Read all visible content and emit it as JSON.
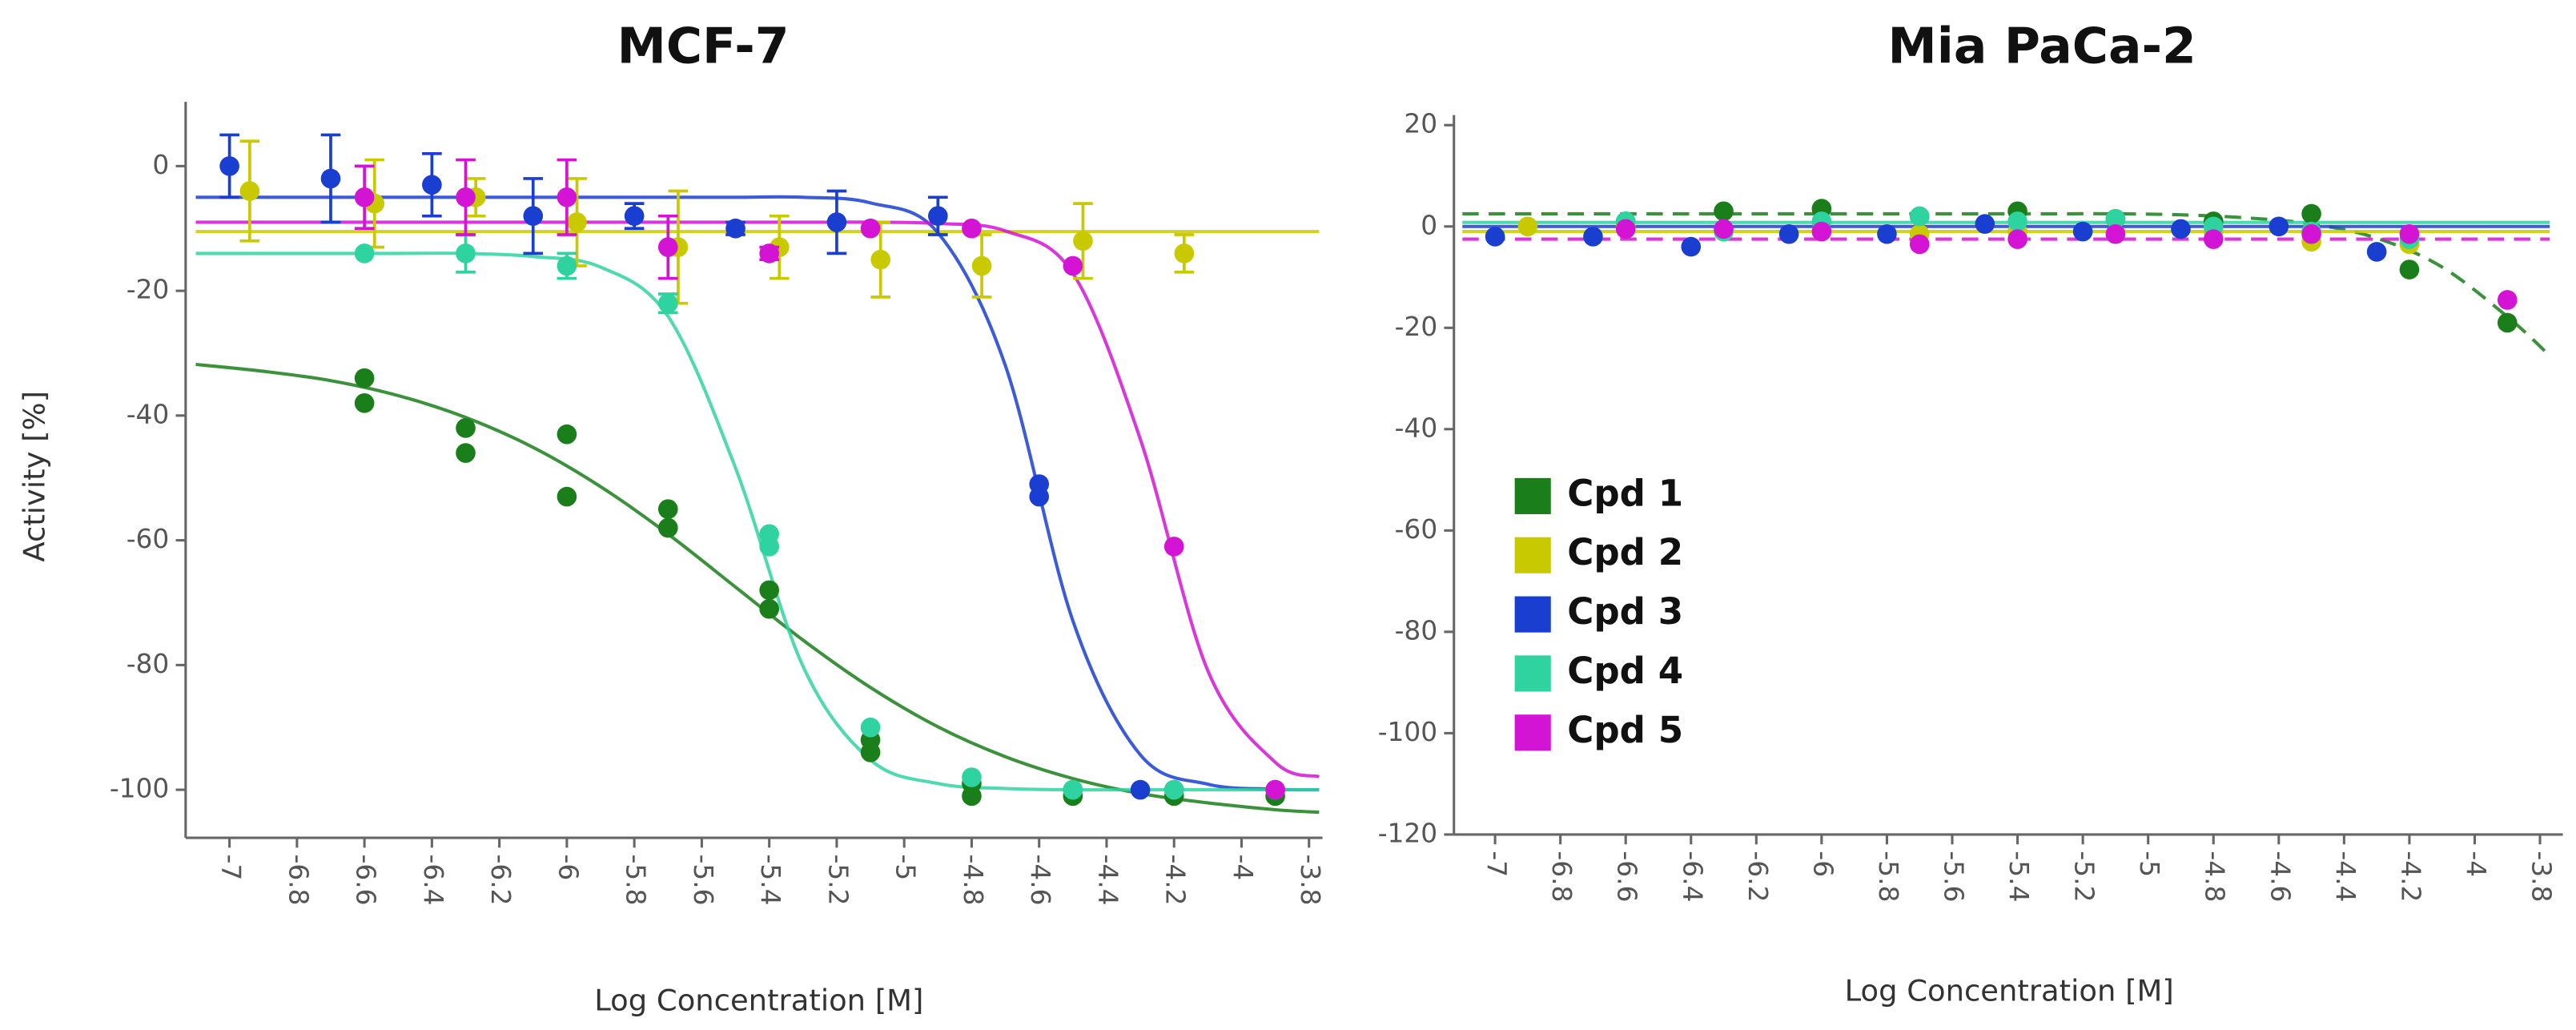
{
  "chart_data": [
    {
      "type": "scatter",
      "title": "MCF-7",
      "y_label": "Activity [%]",
      "x_label": "Log Concentration [M]",
      "xlim": [
        -7.13,
        -3.76
      ],
      "xticks": [
        -7,
        -6.8,
        -6.6,
        -6.4,
        -6.2,
        -6,
        -5.8,
        -5.6,
        -5.4,
        -5.2,
        -5,
        -4.8,
        -4.6,
        -4.4,
        -4.2,
        -4,
        -3.8
      ],
      "ylim": [
        -107.7,
        10.3
      ],
      "yticks": [
        -100,
        -80,
        -60,
        -40,
        -20,
        0
      ],
      "fit_x": [
        -7.1,
        -6.9,
        -6.7,
        -6.5,
        -6.3,
        -6.1,
        -5.9,
        -5.7,
        -5.5,
        -5.3,
        -5.1,
        -4.9,
        -4.7,
        -4.5,
        -4.3,
        -4.1,
        -3.9,
        -3.77
      ],
      "series": [
        {
          "color": "#1a7f1a",
          "x": [
            -6.6,
            -6.6,
            -6.3,
            -6.3,
            -6,
            -6,
            -5.7,
            -5.7,
            -5.4,
            -5.4,
            -5.1,
            -5.1,
            -4.8,
            -4.8,
            -4.5,
            -4.5,
            -4.2,
            -4.2,
            -3.9,
            -3.9
          ],
          "values": [
            -34,
            -38,
            -42,
            -46,
            -43,
            -53,
            -55,
            -58,
            -68,
            -71,
            -92,
            -94,
            -99,
            -101,
            -100,
            -101,
            -101,
            -100,
            -100,
            -101
          ],
          "fit": [
            -31.8,
            -32.9,
            -34.4,
            -36.8,
            -40.3,
            -45.1,
            -51.4,
            -59.0,
            -67.5,
            -76.0,
            -83.6,
            -89.9,
            -94.7,
            -98.2,
            -100.6,
            -102.1,
            -103.2,
            -103.6
          ]
        },
        {
          "color": "#c9c900",
          "x": [
            -6.94,
            -6.57,
            -6.27,
            -5.97,
            -5.67,
            -5.37,
            -5.07,
            -4.77,
            -4.47,
            -4.17
          ],
          "values": [
            -4,
            -6,
            -5,
            -9,
            -13,
            -13,
            -15,
            -16,
            -12,
            -14
          ],
          "errors": [
            8,
            7,
            3,
            7,
            9,
            5,
            6,
            5,
            6,
            3
          ],
          "fit": [
            -10.5,
            -10.5,
            -10.5,
            -10.5,
            -10.5,
            -10.5,
            -10.5,
            -10.5,
            -10.5,
            -10.5,
            -10.5,
            -10.5,
            -10.5,
            -10.5,
            -10.5,
            -10.5,
            -10.5,
            -10.5
          ]
        },
        {
          "color": "#1a3fd0",
          "x": [
            -7,
            -6.7,
            -6.4,
            -6.1,
            -5.8,
            -5.5,
            -5.2,
            -4.9,
            -4.6,
            -4.6,
            -4.3
          ],
          "values": [
            0,
            -2,
            -3,
            -8,
            -8,
            -10,
            -9,
            -8,
            -51,
            -53,
            -100
          ],
          "errors": [
            5,
            7,
            5,
            6,
            2,
            1,
            5,
            3,
            null,
            null,
            null
          ],
          "fit": [
            -5,
            -5,
            -5,
            -5,
            -5,
            -5,
            -5,
            -5,
            -5,
            -5,
            -5.9,
            -10.7,
            -32,
            -72.9,
            -94.4,
            -99.1,
            -99.9,
            -100
          ]
        },
        {
          "color": "#2fd3a0",
          "x": [
            -6.6,
            -6.3,
            -6,
            -5.7,
            -5.4,
            -5.4,
            -5.1,
            -4.8,
            -4.5,
            -4.2,
            -3.9
          ],
          "values": [
            -14,
            -14,
            -16,
            -22,
            -59,
            -61,
            -90,
            -98,
            -100,
            -100,
            -100
          ],
          "errors": [
            null,
            3,
            2,
            1.5,
            null,
            null,
            null,
            null,
            null,
            null,
            null
          ],
          "fit": [
            -14,
            -14,
            -14,
            -14,
            -14,
            -14.5,
            -16.2,
            -24.1,
            -48.4,
            -80.2,
            -95.2,
            -99.0,
            -99.8,
            -100,
            -100,
            -100,
            -100,
            -100
          ]
        },
        {
          "color": "#d414d4",
          "x": [
            -6.6,
            -6.3,
            -6,
            -5.7,
            -5.4,
            -5.1,
            -4.8,
            -4.5,
            -4.2,
            -3.9
          ],
          "values": [
            -5,
            -5,
            -5,
            -13,
            -14,
            -10,
            -10,
            -16,
            -61,
            -100
          ],
          "errors": [
            5,
            6,
            6,
            5,
            1,
            null,
            null,
            null,
            null,
            null
          ],
          "fit": [
            -9,
            -9,
            -9,
            -9,
            -9,
            -9,
            -9,
            -9,
            -9,
            -9,
            -9,
            -9.2,
            -10.4,
            -17.2,
            -43.8,
            -80.9,
            -95.6,
            -97.9
          ]
        }
      ]
    },
    {
      "type": "scatter",
      "title": "Mia PaCa-2",
      "x_label": "Log Concentration [M]",
      "legend": "center left",
      "xlim": [
        -7.126,
        -3.73
      ],
      "xticks": [
        -7,
        -6.8,
        -6.6,
        -6.4,
        -6.2,
        -6,
        -5.8,
        -5.6,
        -5.4,
        -5.2,
        -5,
        -4.8,
        -4.6,
        -4.4,
        -4.2,
        -4,
        -3.8
      ],
      "ylim": [
        -120,
        22
      ],
      "yticks": [
        -120,
        -100,
        -80,
        -60,
        -40,
        -20,
        0,
        20
      ],
      "fit_x": [
        -7.1,
        -6.9,
        -6.7,
        -6.5,
        -6.3,
        -6.1,
        -5.9,
        -5.7,
        -5.5,
        -5.3,
        -5.1,
        -4.9,
        -4.7,
        -4.5,
        -4.3,
        -4.1,
        -3.9,
        -3.77
      ],
      "series": [
        {
          "name": "Cpd 1",
          "color": "#1a7f1a",
          "dashed": true,
          "x": [
            -6.6,
            -6.3,
            -6,
            -5.7,
            -5.4,
            -5.1,
            -4.8,
            -4.5,
            -4.2,
            -3.9
          ],
          "values": [
            1,
            3,
            3.5,
            2,
            3,
            1.5,
            1,
            2.5,
            -8.5,
            -19
          ],
          "fit": [
            2.5,
            2.5,
            2.5,
            2.5,
            2.5,
            2.5,
            2.5,
            2.5,
            2.5,
            2.5,
            2.5,
            2.3,
            1.7,
            0.5,
            -2.3,
            -8.0,
            -17.8,
            -25.5
          ]
        },
        {
          "name": "Cpd 2",
          "color": "#c9c900",
          "x": [
            -6.9,
            -6.6,
            -6.3,
            -6,
            -5.7,
            -5.4,
            -5.1,
            -4.8,
            -4.5,
            -4.2
          ],
          "values": [
            0,
            0,
            -1,
            -1,
            -1.5,
            -1,
            -1.5,
            -1,
            -3,
            -3.5
          ],
          "fit": [
            -1,
            -1,
            -1,
            -1,
            -1,
            -1,
            -1,
            -1,
            -1,
            -1,
            -1,
            -1,
            -1,
            -1,
            -1,
            -1,
            -1,
            -1
          ]
        },
        {
          "name": "Cpd 3",
          "color": "#1a3fd0",
          "x": [
            -7,
            -6.7,
            -6.4,
            -6.1,
            -5.8,
            -5.5,
            -5.2,
            -4.9,
            -4.6,
            -4.3
          ],
          "values": [
            -2,
            -2,
            -4,
            -1.5,
            -1.5,
            0.5,
            -1,
            -0.5,
            0,
            -5
          ],
          "fit": [
            0,
            0,
            0,
            0,
            0,
            0,
            0,
            0,
            0,
            0,
            0,
            0,
            0,
            0,
            0,
            0,
            0,
            0
          ]
        },
        {
          "name": "Cpd 4",
          "color": "#2fd3a0",
          "x": [
            -6.6,
            -6.3,
            -6,
            -5.7,
            -5.4,
            -5.1,
            -4.8,
            -4.5,
            -4.2
          ],
          "values": [
            1,
            -1,
            1,
            2,
            1,
            1.5,
            0,
            -1,
            -2.5
          ],
          "fit": [
            0.8,
            0.8,
            0.8,
            0.8,
            0.8,
            0.8,
            0.8,
            0.8,
            0.8,
            0.8,
            0.8,
            0.8,
            0.8,
            0.8,
            0.8,
            0.8,
            0.8,
            0.8
          ]
        },
        {
          "name": "Cpd 5",
          "color": "#d414d4",
          "dashed": true,
          "x": [
            -6.6,
            -6.3,
            -6,
            -5.7,
            -5.4,
            -5.1,
            -4.8,
            -4.5,
            -4.2,
            -3.9
          ],
          "values": [
            -0.5,
            -0.5,
            -1,
            -3.5,
            -2.5,
            -1.5,
            -2.5,
            -1.5,
            -1.5,
            -14.5
          ],
          "fit": [
            -2.5,
            -2.5,
            -2.5,
            -2.5,
            -2.5,
            -2.5,
            -2.5,
            -2.5,
            -2.5,
            -2.5,
            -2.5,
            -2.5,
            -2.5,
            -2.5,
            -2.5,
            -2.5,
            -2.5,
            -2.5
          ]
        }
      ]
    }
  ]
}
